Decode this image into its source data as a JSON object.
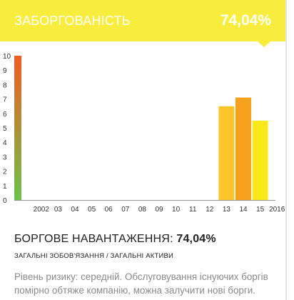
{
  "header": {
    "title": "ЗАБОРГОВАНІСТЬ",
    "value": "74,04%"
  },
  "footer": {
    "title": "БОРГОВЕ НАВАНТАЖЕННЯ",
    "title_sep": ": ",
    "value": "74,04%",
    "subtitle": "ЗАГАЛЬНІ ЗОБОВ'ЯЗАННЯ / ЗАГАЛЬНІ АКТИВИ",
    "description": "Рівень ризику: середній. Обслуговування існуючих боргів помірно обтяже компанію, можна залучити нові борги."
  },
  "colors": {
    "header_bg": "#f8ec3c",
    "bar_yellow": "#fcc52a",
    "bar_orange": "#f7a21f",
    "bar_light_yellow": "#fbe81c",
    "gauge_top": "#f05d22",
    "gauge_bottom": "#6cc24a"
  },
  "chart_data": {
    "type": "bar",
    "ylim": [
      0,
      10
    ],
    "yticks": [
      "0",
      "1",
      "2",
      "3",
      "4",
      "5",
      "6",
      "7",
      "8",
      "9",
      "10"
    ],
    "categories": [
      "2002",
      "03",
      "04",
      "05",
      "06",
      "07",
      "08",
      "09",
      "10",
      "11",
      "12",
      "13",
      "14",
      "15",
      "2016"
    ],
    "values": [
      0,
      0,
      0,
      0,
      0,
      0,
      0,
      0,
      0,
      0,
      0,
      6.5,
      7.1,
      5.5,
      0
    ],
    "bar_colors": [
      "",
      "",
      "",
      "",
      "",
      "",
      "",
      "",
      "",
      "",
      "",
      "#fcc52a",
      "#f7a21f",
      "#fbe81c",
      ""
    ],
    "gauge": {
      "min": 0,
      "max": 10,
      "from_color": "#6cc24a",
      "to_color": "#f05d22"
    },
    "grid": false
  }
}
